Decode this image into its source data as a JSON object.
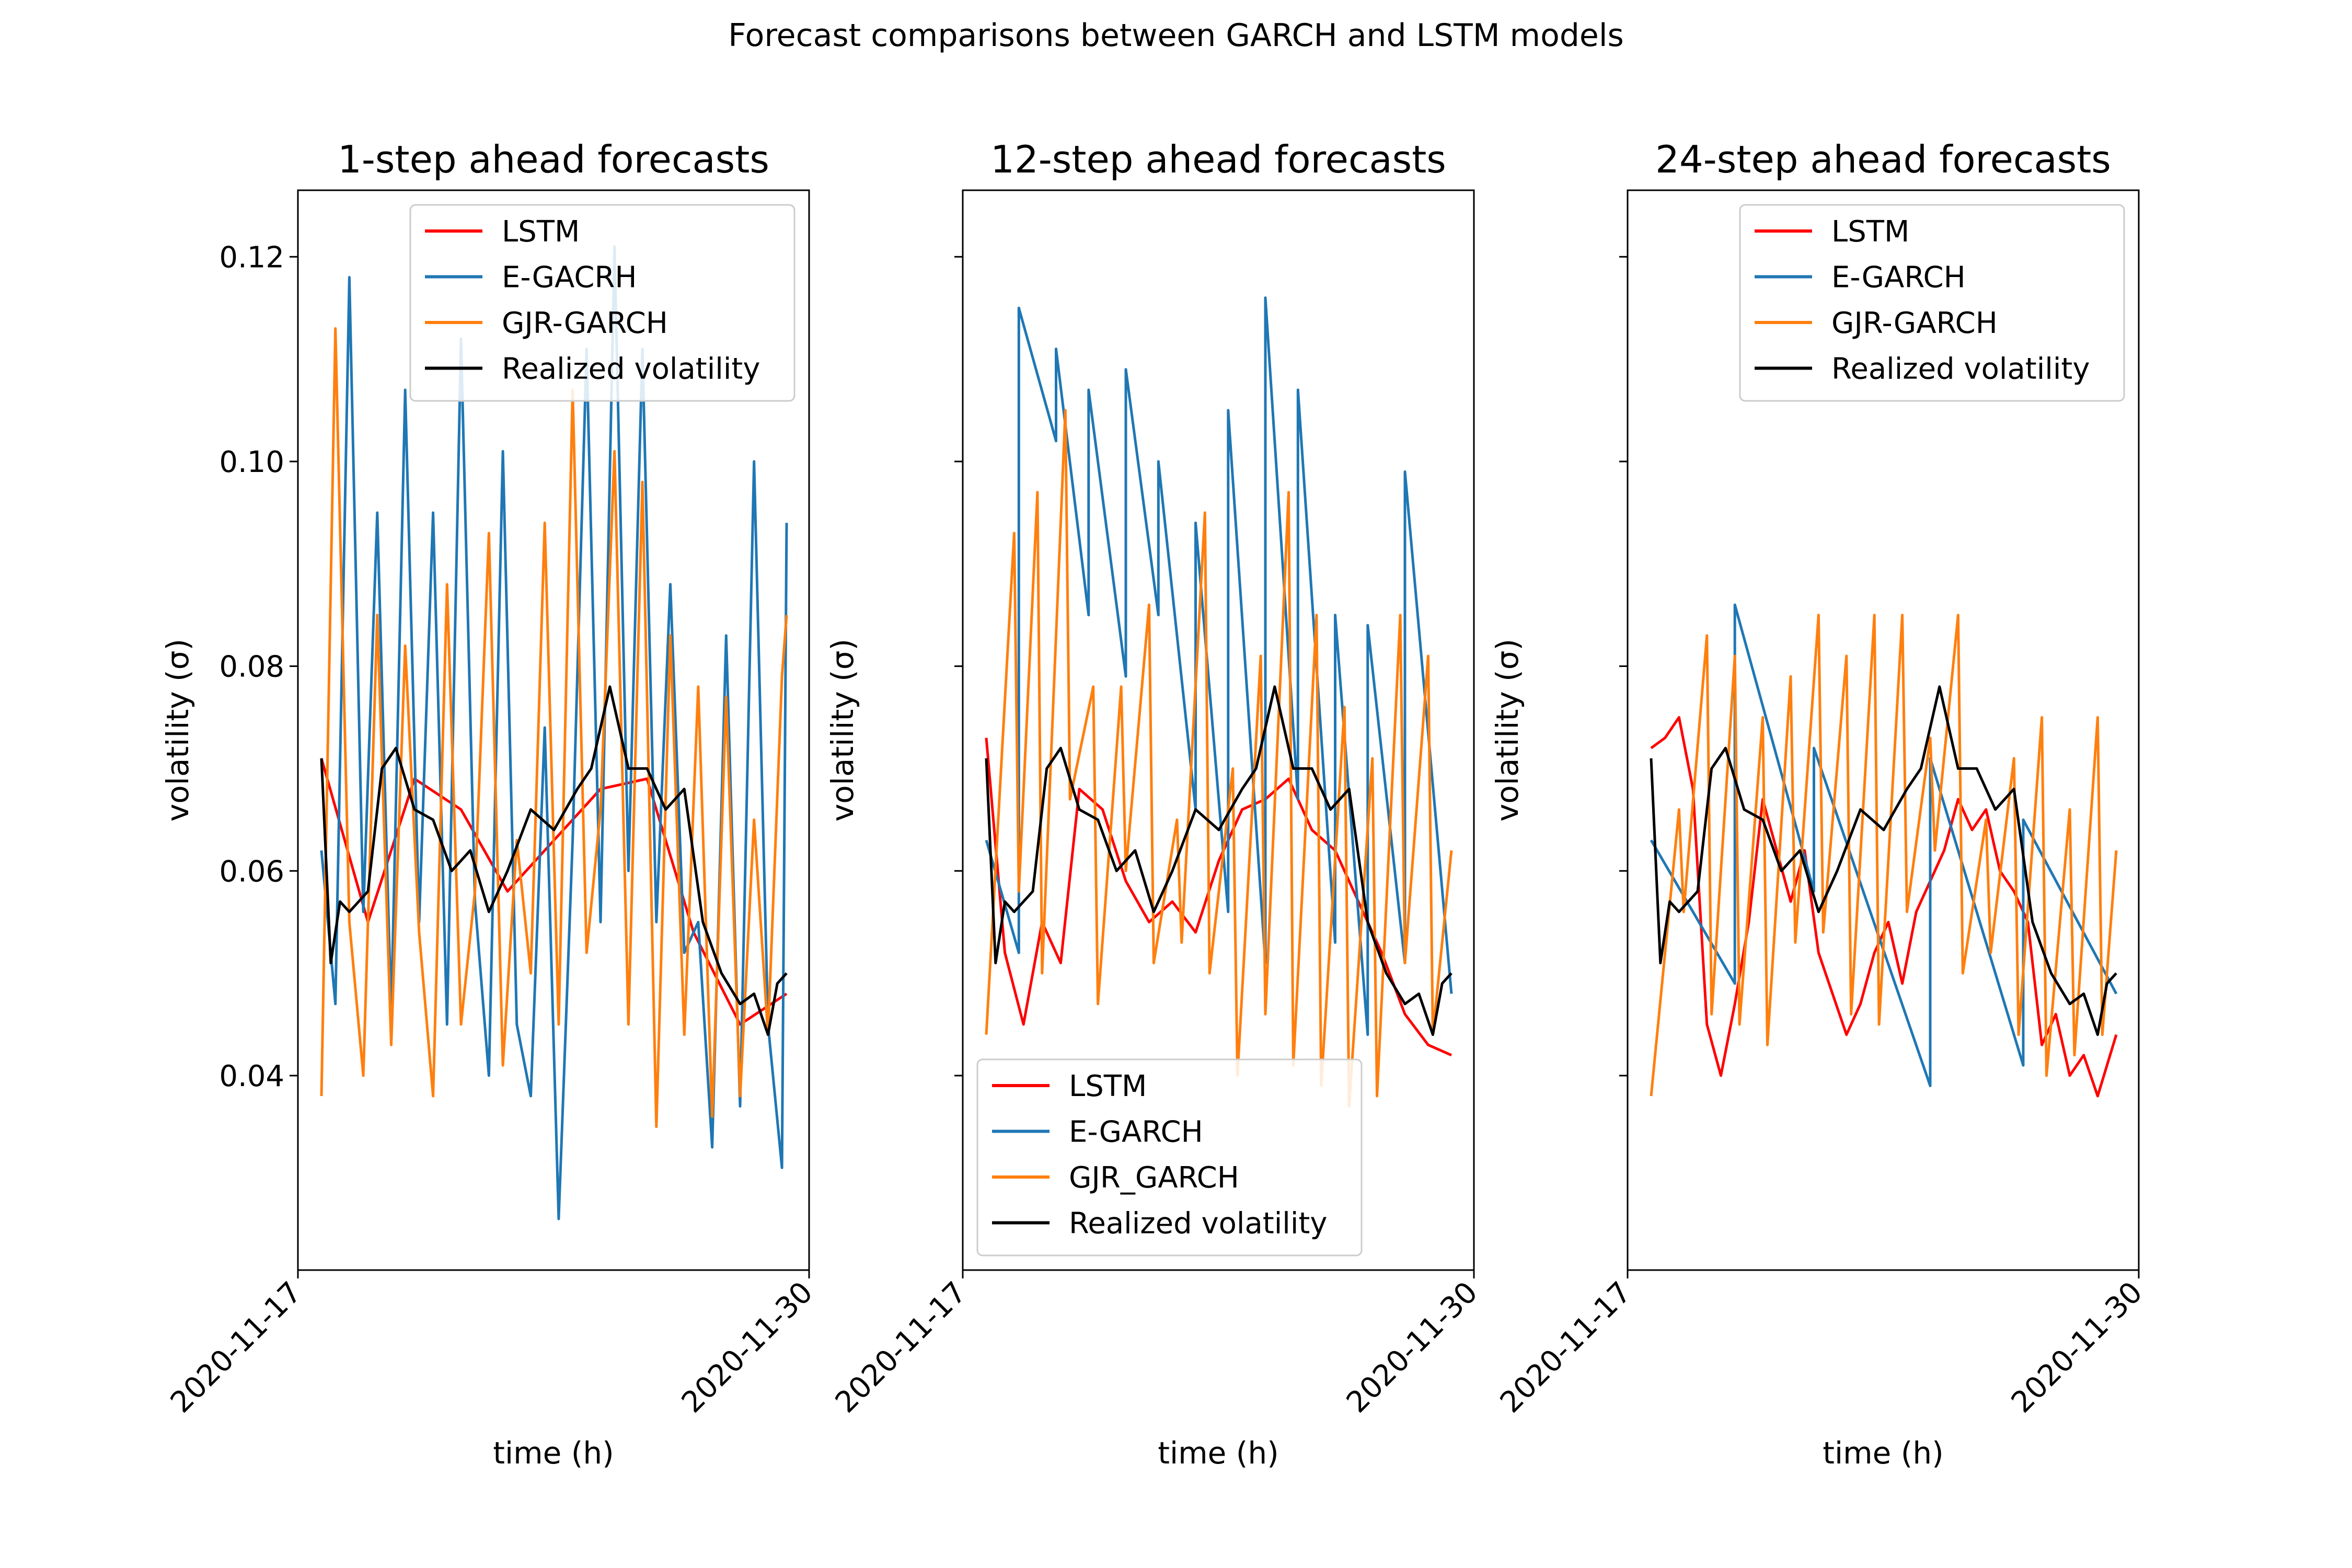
{
  "figure": {
    "suptitle": "Forecast comparisons between GARCH and LSTM models"
  },
  "chart_data": [
    {
      "type": "line",
      "title": "1-step ahead forecasts",
      "xlabel": "time (h)",
      "ylabel": "volatility (σ)",
      "x_ticks": [
        "2020-11-17",
        "2020-11-30"
      ],
      "y_ticks": [
        "0.04",
        "0.06",
        "0.08",
        "0.10",
        "0.12"
      ],
      "ylim": [
        0.021,
        0.1265
      ],
      "legend_position": "upper right",
      "series": [
        {
          "name": "LSTM",
          "color": "#ff0000",
          "x": [
            0,
            10,
            20,
            30,
            40,
            50,
            60,
            70,
            80,
            90,
            100
          ],
          "y": [
            0.071,
            0.055,
            0.069,
            0.066,
            0.058,
            0.063,
            0.068,
            0.069,
            0.054,
            0.045,
            0.048
          ]
        },
        {
          "name": "E-GACRH",
          "color": "#1f77b4",
          "x": [
            0,
            3,
            6,
            9,
            12,
            15,
            18,
            21,
            24,
            27,
            30,
            33,
            36,
            39,
            42,
            45,
            48,
            51,
            54,
            57,
            60,
            63,
            66,
            69,
            72,
            75,
            78,
            81,
            84,
            87,
            90,
            93,
            96,
            99,
            100
          ],
          "y": [
            0.062,
            0.047,
            0.118,
            0.056,
            0.095,
            0.046,
            0.107,
            0.055,
            0.095,
            0.045,
            0.112,
            0.057,
            0.04,
            0.101,
            0.045,
            0.038,
            0.074,
            0.026,
            0.063,
            0.111,
            0.055,
            0.121,
            0.06,
            0.111,
            0.055,
            0.088,
            0.052,
            0.055,
            0.033,
            0.083,
            0.037,
            0.1,
            0.045,
            0.031,
            0.094
          ]
        },
        {
          "name": "GJR-GARCH",
          "color": "#ff7f0e",
          "x": [
            0,
            3,
            6,
            9,
            12,
            15,
            18,
            21,
            24,
            27,
            30,
            33,
            36,
            39,
            42,
            45,
            48,
            51,
            54,
            57,
            60,
            63,
            66,
            69,
            72,
            75,
            78,
            81,
            84,
            87,
            90,
            93,
            96,
            99,
            100
          ],
          "y": [
            0.038,
            0.113,
            0.055,
            0.04,
            0.085,
            0.043,
            0.082,
            0.054,
            0.038,
            0.088,
            0.045,
            0.058,
            0.093,
            0.041,
            0.063,
            0.05,
            0.094,
            0.045,
            0.107,
            0.052,
            0.066,
            0.101,
            0.045,
            0.098,
            0.035,
            0.083,
            0.044,
            0.078,
            0.036,
            0.077,
            0.038,
            0.065,
            0.044,
            0.079,
            0.085
          ]
        },
        {
          "name": "Realized volatility",
          "color": "#000000",
          "x": [
            0,
            2,
            4,
            6,
            8,
            10,
            13,
            16,
            20,
            24,
            28,
            32,
            36,
            40,
            45,
            50,
            55,
            58,
            62,
            66,
            70,
            74,
            78,
            82,
            86,
            90,
            93,
            96,
            98,
            100
          ],
          "y": [
            0.071,
            0.051,
            0.057,
            0.056,
            0.057,
            0.058,
            0.07,
            0.072,
            0.066,
            0.065,
            0.06,
            0.062,
            0.056,
            0.06,
            0.066,
            0.064,
            0.068,
            0.07,
            0.078,
            0.07,
            0.07,
            0.066,
            0.068,
            0.055,
            0.05,
            0.047,
            0.048,
            0.044,
            0.049,
            0.05
          ]
        }
      ]
    },
    {
      "type": "line",
      "title": "12-step ahead forecasts",
      "xlabel": "time (h)",
      "ylabel": "volatility (σ)",
      "x_ticks": [
        "2020-11-17",
        "2020-11-30"
      ],
      "y_ticks": [],
      "ylim": [
        0.021,
        0.1265
      ],
      "legend_position": "lower left",
      "series": [
        {
          "name": "LSTM",
          "color": "#ff0000",
          "x": [
            0,
            4,
            8,
            12,
            16,
            20,
            25,
            30,
            35,
            40,
            45,
            50,
            55,
            60,
            65,
            70,
            75,
            80,
            85,
            90,
            95,
            100
          ],
          "y": [
            0.073,
            0.052,
            0.045,
            0.055,
            0.051,
            0.068,
            0.066,
            0.059,
            0.055,
            0.057,
            0.054,
            0.061,
            0.066,
            0.067,
            0.069,
            0.064,
            0.062,
            0.057,
            0.052,
            0.046,
            0.043,
            0.042
          ]
        },
        {
          "name": "E-GARCH",
          "color": "#1f77b4",
          "x": [
            0,
            7,
            7,
            15,
            15,
            22,
            22,
            30,
            30,
            37,
            37,
            45,
            45,
            52,
            52,
            60,
            60,
            67,
            67,
            75,
            75,
            82,
            82,
            90,
            90,
            100
          ],
          "y": [
            0.063,
            0.052,
            0.115,
            0.102,
            0.111,
            0.085,
            0.107,
            0.079,
            0.109,
            0.085,
            0.1,
            0.066,
            0.094,
            0.056,
            0.105,
            0.051,
            0.116,
            0.067,
            0.107,
            0.053,
            0.085,
            0.044,
            0.084,
            0.051,
            0.099,
            0.048
          ]
        },
        {
          "name": "GJR_GARCH",
          "color": "#ff7f0e",
          "x": [
            0,
            6,
            7,
            11,
            12,
            17,
            18,
            23,
            24,
            29,
            30,
            35,
            36,
            41,
            42,
            47,
            48,
            53,
            54,
            59,
            60,
            65,
            66,
            71,
            72,
            77,
            78,
            83,
            84,
            89,
            90,
            95,
            96,
            100
          ],
          "y": [
            0.044,
            0.093,
            0.058,
            0.097,
            0.05,
            0.105,
            0.067,
            0.078,
            0.047,
            0.078,
            0.06,
            0.086,
            0.051,
            0.065,
            0.053,
            0.095,
            0.05,
            0.07,
            0.04,
            0.081,
            0.046,
            0.097,
            0.041,
            0.085,
            0.039,
            0.076,
            0.037,
            0.071,
            0.038,
            0.085,
            0.051,
            0.081,
            0.044,
            0.062
          ]
        },
        {
          "name": "Realized volatility",
          "color": "#000000",
          "x": [
            0,
            2,
            4,
            6,
            8,
            10,
            13,
            16,
            20,
            24,
            28,
            32,
            36,
            40,
            45,
            50,
            55,
            58,
            62,
            66,
            70,
            74,
            78,
            82,
            86,
            90,
            93,
            96,
            98,
            100
          ],
          "y": [
            0.071,
            0.051,
            0.057,
            0.056,
            0.057,
            0.058,
            0.07,
            0.072,
            0.066,
            0.065,
            0.06,
            0.062,
            0.056,
            0.06,
            0.066,
            0.064,
            0.068,
            0.07,
            0.078,
            0.07,
            0.07,
            0.066,
            0.068,
            0.055,
            0.05,
            0.047,
            0.048,
            0.044,
            0.049,
            0.05
          ]
        }
      ]
    },
    {
      "type": "line",
      "title": "24-step ahead forecasts",
      "xlabel": "time (h)",
      "ylabel": "volatility (σ)",
      "x_ticks": [
        "2020-11-17",
        "2020-11-30"
      ],
      "y_ticks": [],
      "ylim": [
        0.021,
        0.1265
      ],
      "legend_position": "upper right",
      "series": [
        {
          "name": "LSTM",
          "color": "#ff0000",
          "x": [
            0,
            3,
            6,
            9,
            12,
            15,
            18,
            21,
            24,
            27,
            30,
            33,
            36,
            39,
            42,
            45,
            48,
            51,
            54,
            57,
            60,
            63,
            66,
            69,
            72,
            75,
            78,
            81,
            84,
            87,
            90,
            93,
            96,
            100
          ],
          "y": [
            0.072,
            0.073,
            0.075,
            0.068,
            0.045,
            0.04,
            0.047,
            0.055,
            0.067,
            0.062,
            0.057,
            0.062,
            0.052,
            0.048,
            0.044,
            0.047,
            0.052,
            0.055,
            0.049,
            0.056,
            0.059,
            0.062,
            0.067,
            0.064,
            0.066,
            0.06,
            0.058,
            0.055,
            0.043,
            0.046,
            0.04,
            0.042,
            0.038,
            0.044
          ]
        },
        {
          "name": "E-GARCH",
          "color": "#1f77b4",
          "x": [
            0,
            18,
            18,
            35,
            35,
            60,
            60,
            80,
            80,
            100
          ],
          "y": [
            0.063,
            0.049,
            0.086,
            0.058,
            0.072,
            0.039,
            0.071,
            0.041,
            0.065,
            0.048
          ]
        },
        {
          "name": "GJR-GARCH",
          "color": "#ff7f0e",
          "x": [
            0,
            6,
            7,
            12,
            13,
            18,
            19,
            24,
            25,
            30,
            31,
            36,
            37,
            42,
            43,
            48,
            49,
            54,
            55,
            60,
            61,
            66,
            67,
            72,
            73,
            78,
            79,
            84,
            85,
            90,
            91,
            96,
            97,
            100
          ],
          "y": [
            0.038,
            0.066,
            0.056,
            0.083,
            0.046,
            0.081,
            0.045,
            0.075,
            0.043,
            0.079,
            0.053,
            0.085,
            0.054,
            0.081,
            0.046,
            0.085,
            0.045,
            0.085,
            0.056,
            0.073,
            0.062,
            0.085,
            0.05,
            0.065,
            0.052,
            0.071,
            0.044,
            0.075,
            0.04,
            0.066,
            0.042,
            0.075,
            0.044,
            0.062
          ]
        },
        {
          "name": "Realized volatility",
          "color": "#000000",
          "x": [
            0,
            2,
            4,
            6,
            8,
            10,
            13,
            16,
            20,
            24,
            28,
            32,
            36,
            40,
            45,
            50,
            55,
            58,
            62,
            66,
            70,
            74,
            78,
            82,
            86,
            90,
            93,
            96,
            98,
            100
          ],
          "y": [
            0.071,
            0.051,
            0.057,
            0.056,
            0.057,
            0.058,
            0.07,
            0.072,
            0.066,
            0.065,
            0.06,
            0.062,
            0.056,
            0.06,
            0.066,
            0.064,
            0.068,
            0.07,
            0.078,
            0.07,
            0.07,
            0.066,
            0.068,
            0.055,
            0.05,
            0.047,
            0.048,
            0.044,
            0.049,
            0.05
          ]
        }
      ]
    }
  ]
}
